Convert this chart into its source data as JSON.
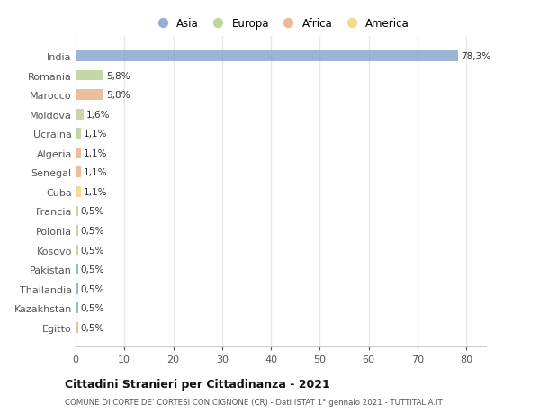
{
  "countries": [
    "India",
    "Romania",
    "Marocco",
    "Moldova",
    "Ucraina",
    "Algeria",
    "Senegal",
    "Cuba",
    "Francia",
    "Polonia",
    "Kosovo",
    "Pakistan",
    "Thailandia",
    "Kazakhstan",
    "Egitto"
  ],
  "values": [
    78.3,
    5.8,
    5.8,
    1.6,
    1.1,
    1.1,
    1.1,
    1.1,
    0.5,
    0.5,
    0.5,
    0.5,
    0.5,
    0.5,
    0.5
  ],
  "labels": [
    "78,3%",
    "5,8%",
    "5,8%",
    "1,6%",
    "1,1%",
    "1,1%",
    "1,1%",
    "1,1%",
    "0,5%",
    "0,5%",
    "0,5%",
    "0,5%",
    "0,5%",
    "0,5%",
    "0,5%"
  ],
  "colors": [
    "#7b9dc9",
    "#b5c98a",
    "#e8a87c",
    "#b5c98a",
    "#b5c98a",
    "#e8a87c",
    "#e8a87c",
    "#f0d070",
    "#b5c98a",
    "#b5c98a",
    "#b5c98a",
    "#7b9dc9",
    "#7b9dc9",
    "#7b9dc9",
    "#e8a87c"
  ],
  "legend_labels": [
    "Asia",
    "Europa",
    "Africa",
    "America"
  ],
  "legend_colors": [
    "#7b9dc9",
    "#b5c98a",
    "#e8a87c",
    "#f0d070"
  ],
  "title": "Cittadini Stranieri per Cittadinanza - 2021",
  "subtitle": "COMUNE DI CORTE DE' CORTESI CON CIGNONE (CR) - Dati ISTAT 1° gennaio 2021 - TUTTITALIA.IT",
  "xlim": [
    0,
    84
  ],
  "xticks": [
    0,
    10,
    20,
    30,
    40,
    50,
    60,
    70,
    80
  ],
  "background_color": "#ffffff",
  "grid_color": "#e8e8e8",
  "bar_height": 0.55
}
